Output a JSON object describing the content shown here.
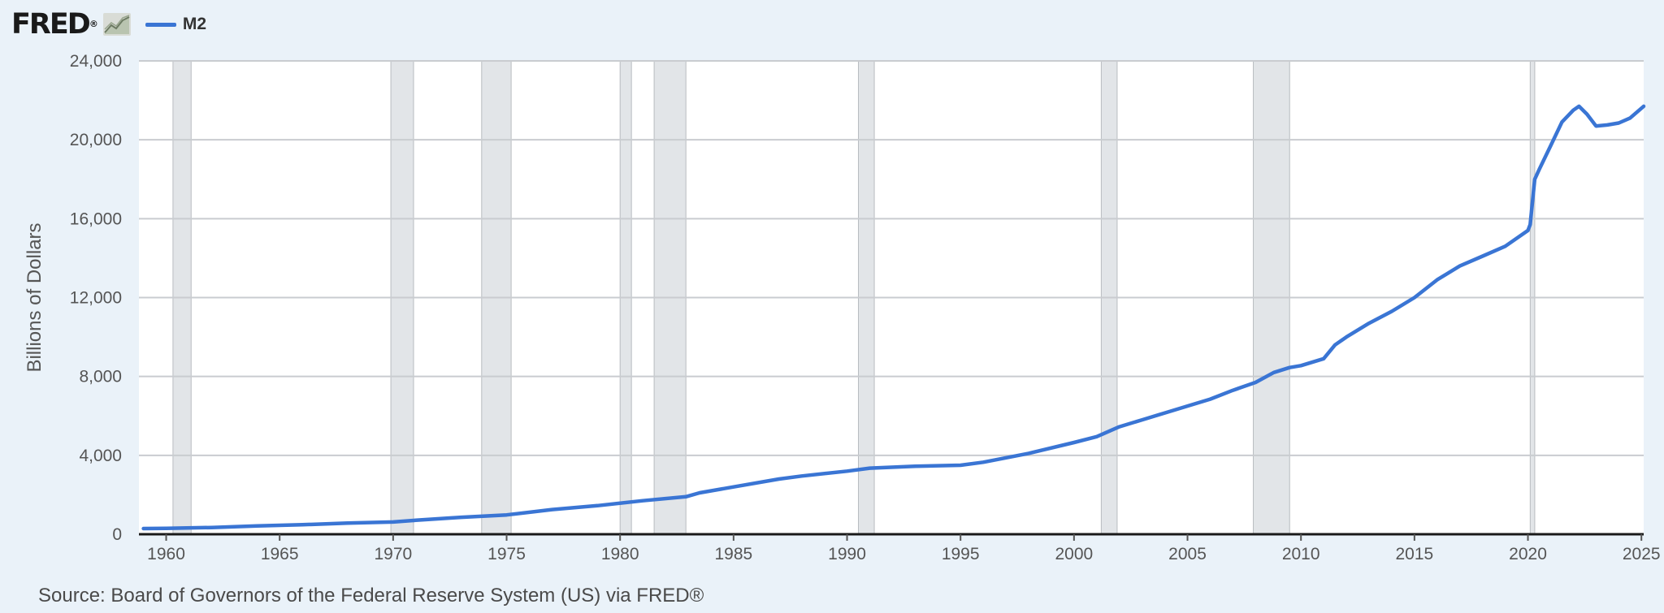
{
  "header": {
    "logo_text": "FRED",
    "logo_registered": "®",
    "logo_mark_icon": "chart-line-icon"
  },
  "legend": {
    "series_label": "M2",
    "color": "#3a75d4"
  },
  "source": "Source: Board of Governors of the Federal Reserve System (US) via FRED®",
  "chart_data": {
    "type": "line",
    "title": "",
    "xlabel": "",
    "ylabel": "Billions of Dollars",
    "xlim": [
      1958.8,
      2025.1
    ],
    "ylim": [
      0,
      24000
    ],
    "x_ticks": [
      1960,
      1965,
      1970,
      1975,
      1980,
      1985,
      1990,
      1995,
      2000,
      2005,
      2010,
      2015,
      2020,
      2025
    ],
    "y_ticks": [
      0,
      4000,
      8000,
      12000,
      16000,
      20000,
      24000
    ],
    "y_tick_labels": [
      "0",
      "4,000",
      "8,000",
      "12,000",
      "16,000",
      "20,000",
      "24,000"
    ],
    "grid": "horizontal",
    "legend_position": "top-left",
    "recession_shading_color": "#e2e5e8",
    "recessions": [
      [
        1960.3,
        1961.1
      ],
      [
        1969.9,
        1970.9
      ],
      [
        1973.9,
        1975.2
      ],
      [
        1980.0,
        1980.5
      ],
      [
        1981.5,
        1982.9
      ],
      [
        1990.5,
        1991.2
      ],
      [
        2001.2,
        2001.9
      ],
      [
        2007.9,
        2009.5
      ],
      [
        2020.1,
        2020.3
      ]
    ],
    "series": [
      {
        "name": "M2",
        "color": "#3a75d4",
        "x": [
          1959.0,
          1960.0,
          1962.0,
          1964.0,
          1966.0,
          1968.0,
          1970.0,
          1971.0,
          1973.0,
          1975.0,
          1977.0,
          1979.0,
          1981.0,
          1982.9,
          1983.5,
          1985.0,
          1987.0,
          1988.0,
          1990.0,
          1991.0,
          1993.0,
          1995.0,
          1996.0,
          1998.0,
          2000.0,
          2001.0,
          2002.0,
          2003.0,
          2004.0,
          2005.0,
          2006.0,
          2007.0,
          2008.0,
          2008.8,
          2009.5,
          2010.0,
          2011.0,
          2011.5,
          2012.0,
          2013.0,
          2014.0,
          2015.0,
          2016.0,
          2017.0,
          2018.0,
          2019.0,
          2020.0,
          2020.1,
          2020.3,
          2020.5,
          2021.0,
          2021.5,
          2022.0,
          2022.25,
          2022.6,
          2023.0,
          2023.5,
          2024.0,
          2024.5,
          2025.1
        ],
        "y": [
          290,
          300,
          340,
          420,
          480,
          570,
          620,
          710,
          860,
          980,
          1250,
          1450,
          1700,
          1900,
          2100,
          2400,
          2800,
          2950,
          3200,
          3350,
          3450,
          3500,
          3650,
          4100,
          4650,
          4950,
          5450,
          5800,
          6150,
          6500,
          6850,
          7300,
          7700,
          8200,
          8450,
          8550,
          8900,
          9600,
          10000,
          10700,
          11300,
          12000,
          12900,
          13600,
          14100,
          14600,
          15400,
          15700,
          18000,
          18500,
          19700,
          20900,
          21500,
          21700,
          21300,
          20700,
          20750,
          20850,
          21100,
          21700
        ]
      }
    ]
  }
}
